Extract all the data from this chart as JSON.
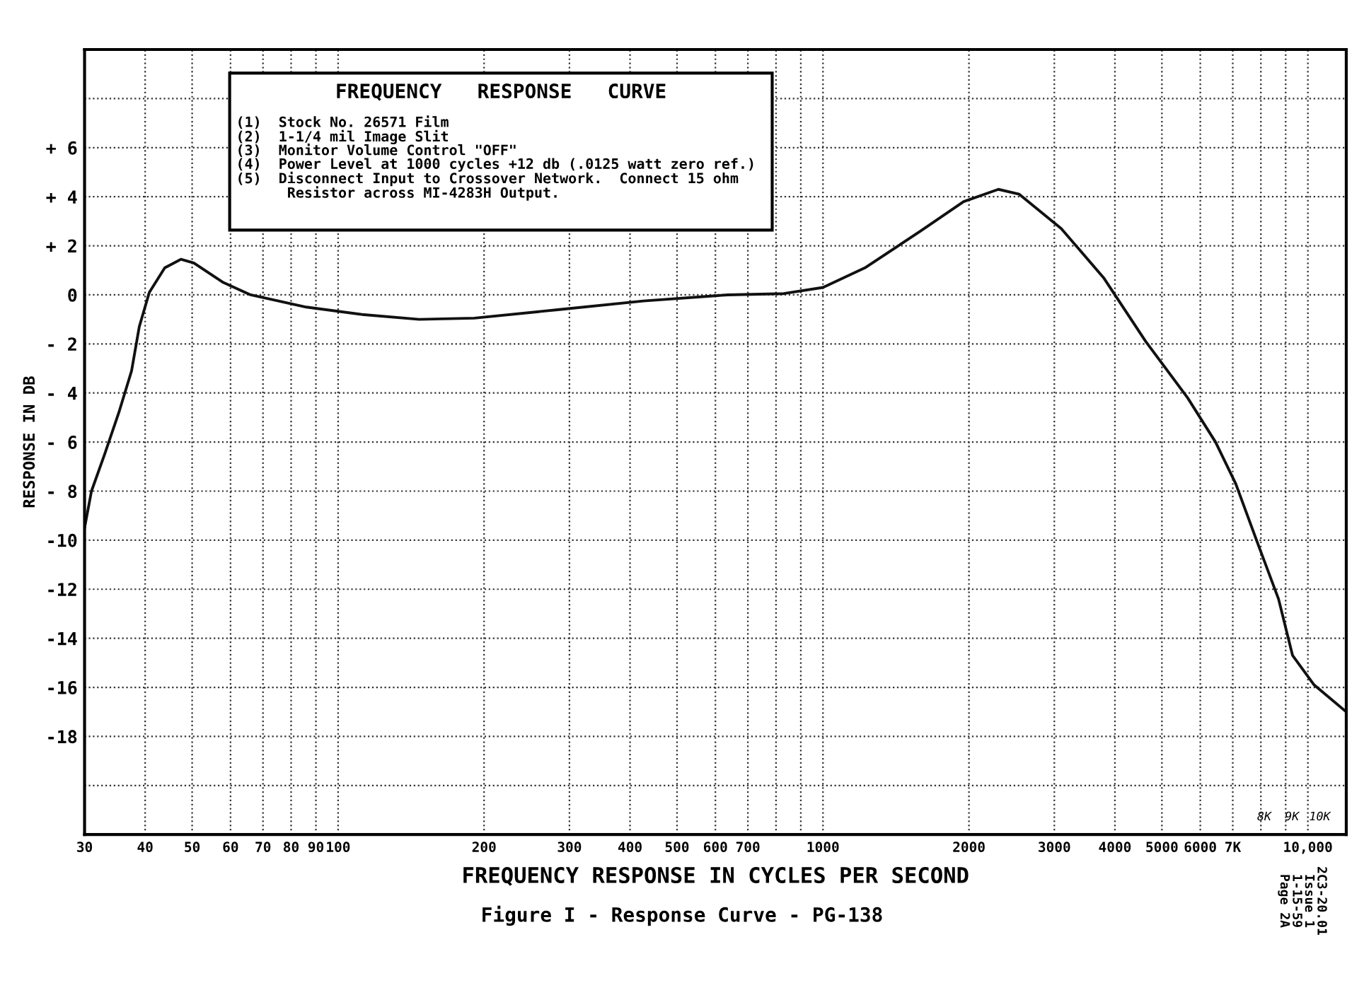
{
  "chart_data": {
    "type": "line",
    "xlabel": "FREQUENCY RESPONSE IN CYCLES PER SECOND",
    "ylabel": "RESPONSE IN DB",
    "log": "x",
    "grid": true,
    "legend": false,
    "marker": "none",
    "line_style": "solid",
    "xlim": [
      30,
      12000
    ],
    "ylim": [
      -22,
      10
    ],
    "xticks": [
      30,
      {
        "value": 40,
        "label": "40"
      },
      {
        "value": 50,
        "label": "50"
      },
      {
        "value": 60,
        "label": "60"
      },
      {
        "value": 70,
        "label": "70"
      },
      {
        "value": 80,
        "label": "80"
      },
      {
        "value": 90,
        "label": "90"
      },
      100,
      200,
      300,
      400,
      500,
      600,
      700,
      {
        "value": 800,
        "label": null
      },
      {
        "value": 900,
        "label": null
      },
      1000,
      2000,
      3000,
      4000,
      5000,
      6000,
      {
        "value": 7000,
        "label": "7K"
      },
      {
        "value": 8000,
        "label": null
      },
      {
        "value": 9000,
        "label": null
      },
      {
        "value": 10000,
        "label": "10,000"
      }
    ],
    "yticks": [
      {
        "value": -22,
        "label": null
      },
      {
        "value": -20,
        "label": null
      },
      {
        "value": -18,
        "label": "-18"
      },
      {
        "value": -16,
        "label": "-16"
      },
      {
        "value": -14,
        "label": "-14"
      },
      {
        "value": -12,
        "label": "-12"
      },
      {
        "value": -10,
        "label": "-10"
      },
      {
        "value": -8,
        "label": "- 8"
      },
      {
        "value": -6,
        "label": "- 6"
      },
      {
        "value": -4,
        "label": "- 4"
      },
      {
        "value": -2,
        "label": "- 2"
      },
      0,
      {
        "value": 2,
        "label": "+ 2"
      },
      {
        "value": 4,
        "label": "+ 4"
      },
      {
        "value": 6,
        "label": "+ 6"
      },
      {
        "value": 8,
        "label": null
      },
      {
        "value": 10,
        "label": null
      }
    ],
    "series": [
      {
        "color": "#111111",
        "x": [
          30,
          31,
          33,
          35.3,
          37.5,
          38.9,
          40.8,
          43.9,
          47.4,
          50.4,
          58,
          66,
          86,
          112,
          147,
          191,
          286,
          426,
          636,
          830,
          1000,
          1220,
          1590,
          1950,
          2300,
          2540,
          3100,
          3790,
          4630,
          5650,
          6450,
          7100,
          7870,
          8700,
          9300,
          10300,
          12000
        ],
        "values": [
          -9.5,
          -8.0,
          -6.5,
          -4.8,
          -3.1,
          -1.3,
          0.1,
          1.1,
          1.45,
          1.3,
          0.5,
          0,
          -0.5,
          -0.8,
          -1.0,
          -0.95,
          -0.6,
          -0.25,
          0,
          0.05,
          0.3,
          1.1,
          2.6,
          3.8,
          4.3,
          4.1,
          2.7,
          0.7,
          -1.9,
          -4.2,
          -6.0,
          -7.7,
          -10.1,
          -12.4,
          -14.7,
          -15.9,
          -17.0
        ]
      }
    ],
    "annotations": [
      "FREQUENCY   RESPONSE   CURVE",
      "(1)  Stock No. 26571 Film\n(2)  1-1/4 mil Image Slit\n(3)  Monitor Volume Control \"OFF\"\n(4)  Power Level at 1000 cycles +12 db (.0125 watt zero ref.)\n(5)  Disconnect Input to Crossover Network.  Connect 15 ohm\n      Resistor across MI-4283H Output.",
      "Figure I - Response Curve - PG-138",
      "2C3-20.01\nIssue 1\n1-15-59\nPage 2A",
      "8K",
      "9K",
      "10K"
    ]
  }
}
